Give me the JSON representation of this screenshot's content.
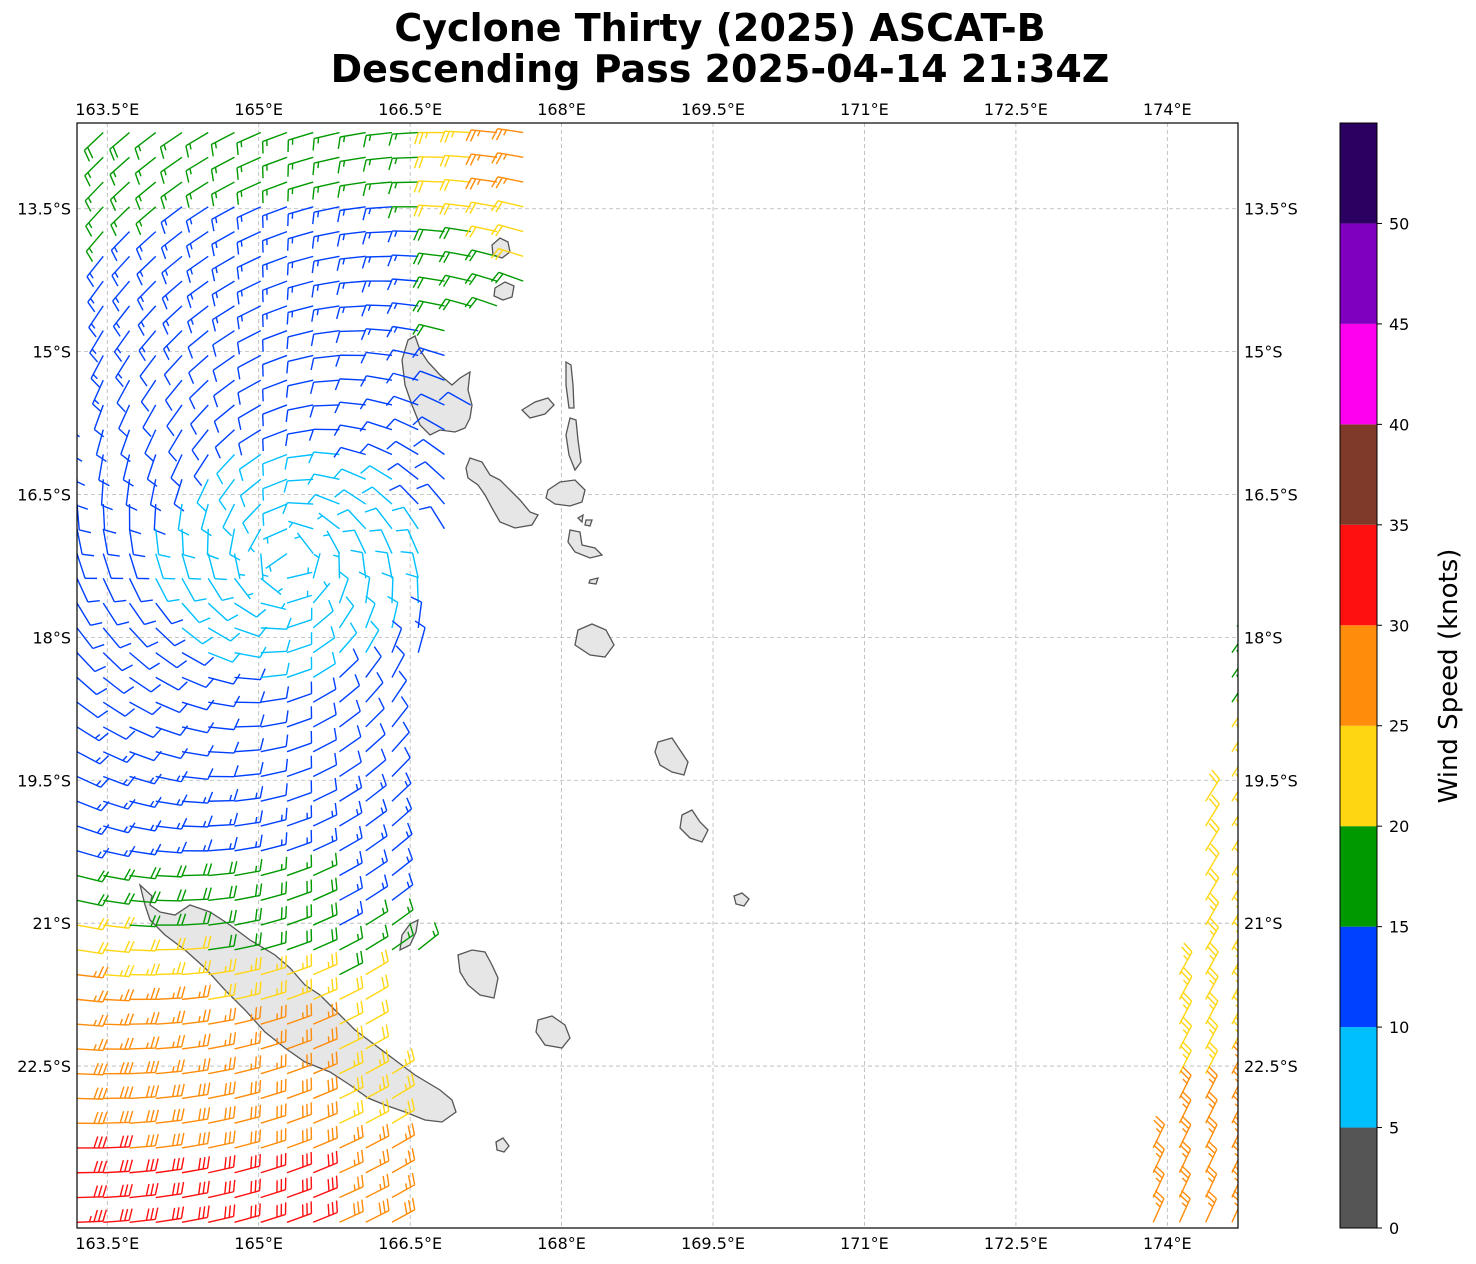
{
  "title": {
    "line1": "Cyclone Thirty (2025) ASCAT-B",
    "line2": "Descending Pass 2025-04-14 21:34Z"
  },
  "map": {
    "lon_range": [
      163.2,
      174.7
    ],
    "lat_range": [
      -24.2,
      -12.6
    ],
    "lon_ticks": [
      {
        "value": 163.5,
        "label": "163.5°E"
      },
      {
        "value": 165.0,
        "label": "165°E"
      },
      {
        "value": 166.5,
        "label": "166.5°E"
      },
      {
        "value": 168.0,
        "label": "168°E"
      },
      {
        "value": 169.5,
        "label": "169.5°E"
      },
      {
        "value": 171.0,
        "label": "171°E"
      },
      {
        "value": 172.5,
        "label": "172.5°E"
      },
      {
        "value": 174.0,
        "label": "174°E"
      }
    ],
    "lat_ticks": [
      {
        "value": -13.5,
        "label": "13.5°S"
      },
      {
        "value": -15.0,
        "label": "15°S"
      },
      {
        "value": -16.5,
        "label": "16.5°S"
      },
      {
        "value": -18.0,
        "label": "18°S"
      },
      {
        "value": -19.5,
        "label": "19.5°S"
      },
      {
        "value": -21.0,
        "label": "21°S"
      },
      {
        "value": -22.5,
        "label": "22.5°S"
      }
    ],
    "cyclone_center": {
      "lon": 165.3,
      "lat": -17.2
    },
    "grid": true,
    "land_fill": "#e6e6e6",
    "coast_color": "#555555"
  },
  "colorbar": {
    "label": "Wind Speed (knots)",
    "bins": [
      {
        "min": 0,
        "max": 5,
        "color": "#555555"
      },
      {
        "min": 5,
        "max": 10,
        "color": "#00bfff"
      },
      {
        "min": 10,
        "max": 15,
        "color": "#0040ff"
      },
      {
        "min": 15,
        "max": 20,
        "color": "#009900"
      },
      {
        "min": 20,
        "max": 25,
        "color": "#ffd612"
      },
      {
        "min": 25,
        "max": 30,
        "color": "#ff8c0a"
      },
      {
        "min": 30,
        "max": 35,
        "color": "#ff1010"
      },
      {
        "min": 35,
        "max": 40,
        "color": "#803a2a"
      },
      {
        "min": 40,
        "max": 45,
        "color": "#ff00ee"
      },
      {
        "min": 45,
        "max": 50,
        "color": "#8000c0"
      },
      {
        "min": 50,
        "max": 55,
        "color": "#2a0060"
      }
    ],
    "tick_labels": [
      "0",
      "5",
      "10",
      "15",
      "20",
      "25",
      "30",
      "35",
      "40",
      "45",
      "50"
    ]
  }
}
